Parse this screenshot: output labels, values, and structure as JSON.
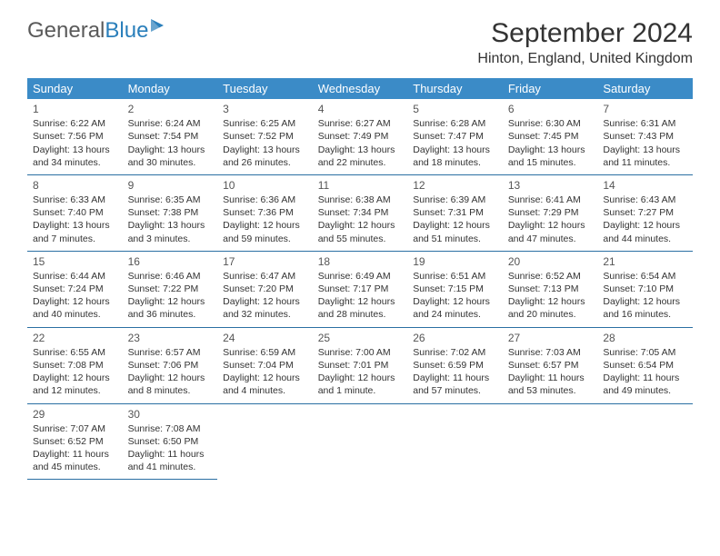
{
  "logo": {
    "text1": "General",
    "text2": "Blue"
  },
  "title": "September 2024",
  "location": "Hinton, England, United Kingdom",
  "colors": {
    "header_bg": "#3b8bc7",
    "border": "#2a6fa3",
    "logo_blue": "#2a7fbb",
    "text": "#333333"
  },
  "weekdays": [
    "Sunday",
    "Monday",
    "Tuesday",
    "Wednesday",
    "Thursday",
    "Friday",
    "Saturday"
  ],
  "weeks": [
    [
      {
        "n": "1",
        "sr": "Sunrise: 6:22 AM",
        "ss": "Sunset: 7:56 PM",
        "d1": "Daylight: 13 hours",
        "d2": "and 34 minutes."
      },
      {
        "n": "2",
        "sr": "Sunrise: 6:24 AM",
        "ss": "Sunset: 7:54 PM",
        "d1": "Daylight: 13 hours",
        "d2": "and 30 minutes."
      },
      {
        "n": "3",
        "sr": "Sunrise: 6:25 AM",
        "ss": "Sunset: 7:52 PM",
        "d1": "Daylight: 13 hours",
        "d2": "and 26 minutes."
      },
      {
        "n": "4",
        "sr": "Sunrise: 6:27 AM",
        "ss": "Sunset: 7:49 PM",
        "d1": "Daylight: 13 hours",
        "d2": "and 22 minutes."
      },
      {
        "n": "5",
        "sr": "Sunrise: 6:28 AM",
        "ss": "Sunset: 7:47 PM",
        "d1": "Daylight: 13 hours",
        "d2": "and 18 minutes."
      },
      {
        "n": "6",
        "sr": "Sunrise: 6:30 AM",
        "ss": "Sunset: 7:45 PM",
        "d1": "Daylight: 13 hours",
        "d2": "and 15 minutes."
      },
      {
        "n": "7",
        "sr": "Sunrise: 6:31 AM",
        "ss": "Sunset: 7:43 PM",
        "d1": "Daylight: 13 hours",
        "d2": "and 11 minutes."
      }
    ],
    [
      {
        "n": "8",
        "sr": "Sunrise: 6:33 AM",
        "ss": "Sunset: 7:40 PM",
        "d1": "Daylight: 13 hours",
        "d2": "and 7 minutes."
      },
      {
        "n": "9",
        "sr": "Sunrise: 6:35 AM",
        "ss": "Sunset: 7:38 PM",
        "d1": "Daylight: 13 hours",
        "d2": "and 3 minutes."
      },
      {
        "n": "10",
        "sr": "Sunrise: 6:36 AM",
        "ss": "Sunset: 7:36 PM",
        "d1": "Daylight: 12 hours",
        "d2": "and 59 minutes."
      },
      {
        "n": "11",
        "sr": "Sunrise: 6:38 AM",
        "ss": "Sunset: 7:34 PM",
        "d1": "Daylight: 12 hours",
        "d2": "and 55 minutes."
      },
      {
        "n": "12",
        "sr": "Sunrise: 6:39 AM",
        "ss": "Sunset: 7:31 PM",
        "d1": "Daylight: 12 hours",
        "d2": "and 51 minutes."
      },
      {
        "n": "13",
        "sr": "Sunrise: 6:41 AM",
        "ss": "Sunset: 7:29 PM",
        "d1": "Daylight: 12 hours",
        "d2": "and 47 minutes."
      },
      {
        "n": "14",
        "sr": "Sunrise: 6:43 AM",
        "ss": "Sunset: 7:27 PM",
        "d1": "Daylight: 12 hours",
        "d2": "and 44 minutes."
      }
    ],
    [
      {
        "n": "15",
        "sr": "Sunrise: 6:44 AM",
        "ss": "Sunset: 7:24 PM",
        "d1": "Daylight: 12 hours",
        "d2": "and 40 minutes."
      },
      {
        "n": "16",
        "sr": "Sunrise: 6:46 AM",
        "ss": "Sunset: 7:22 PM",
        "d1": "Daylight: 12 hours",
        "d2": "and 36 minutes."
      },
      {
        "n": "17",
        "sr": "Sunrise: 6:47 AM",
        "ss": "Sunset: 7:20 PM",
        "d1": "Daylight: 12 hours",
        "d2": "and 32 minutes."
      },
      {
        "n": "18",
        "sr": "Sunrise: 6:49 AM",
        "ss": "Sunset: 7:17 PM",
        "d1": "Daylight: 12 hours",
        "d2": "and 28 minutes."
      },
      {
        "n": "19",
        "sr": "Sunrise: 6:51 AM",
        "ss": "Sunset: 7:15 PM",
        "d1": "Daylight: 12 hours",
        "d2": "and 24 minutes."
      },
      {
        "n": "20",
        "sr": "Sunrise: 6:52 AM",
        "ss": "Sunset: 7:13 PM",
        "d1": "Daylight: 12 hours",
        "d2": "and 20 minutes."
      },
      {
        "n": "21",
        "sr": "Sunrise: 6:54 AM",
        "ss": "Sunset: 7:10 PM",
        "d1": "Daylight: 12 hours",
        "d2": "and 16 minutes."
      }
    ],
    [
      {
        "n": "22",
        "sr": "Sunrise: 6:55 AM",
        "ss": "Sunset: 7:08 PM",
        "d1": "Daylight: 12 hours",
        "d2": "and 12 minutes."
      },
      {
        "n": "23",
        "sr": "Sunrise: 6:57 AM",
        "ss": "Sunset: 7:06 PM",
        "d1": "Daylight: 12 hours",
        "d2": "and 8 minutes."
      },
      {
        "n": "24",
        "sr": "Sunrise: 6:59 AM",
        "ss": "Sunset: 7:04 PM",
        "d1": "Daylight: 12 hours",
        "d2": "and 4 minutes."
      },
      {
        "n": "25",
        "sr": "Sunrise: 7:00 AM",
        "ss": "Sunset: 7:01 PM",
        "d1": "Daylight: 12 hours",
        "d2": "and 1 minute."
      },
      {
        "n": "26",
        "sr": "Sunrise: 7:02 AM",
        "ss": "Sunset: 6:59 PM",
        "d1": "Daylight: 11 hours",
        "d2": "and 57 minutes."
      },
      {
        "n": "27",
        "sr": "Sunrise: 7:03 AM",
        "ss": "Sunset: 6:57 PM",
        "d1": "Daylight: 11 hours",
        "d2": "and 53 minutes."
      },
      {
        "n": "28",
        "sr": "Sunrise: 7:05 AM",
        "ss": "Sunset: 6:54 PM",
        "d1": "Daylight: 11 hours",
        "d2": "and 49 minutes."
      }
    ],
    [
      {
        "n": "29",
        "sr": "Sunrise: 7:07 AM",
        "ss": "Sunset: 6:52 PM",
        "d1": "Daylight: 11 hours",
        "d2": "and 45 minutes."
      },
      {
        "n": "30",
        "sr": "Sunrise: 7:08 AM",
        "ss": "Sunset: 6:50 PM",
        "d1": "Daylight: 11 hours",
        "d2": "and 41 minutes."
      },
      null,
      null,
      null,
      null,
      null
    ]
  ]
}
